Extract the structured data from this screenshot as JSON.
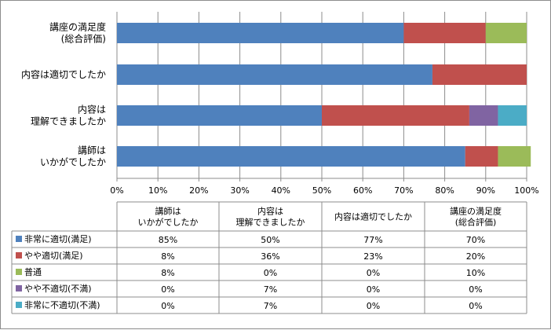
{
  "chart_data": {
    "type": "bar",
    "orientation": "horizontal",
    "stacked": "percent",
    "categories": [
      [
        "講座の満足度",
        "(総合評価)"
      ],
      [
        "内容は適切でしたか"
      ],
      [
        "内容は",
        "理解できましたか"
      ],
      [
        "講師は",
        "いかがでしたか"
      ]
    ],
    "x_ticks": [
      "0%",
      "10%",
      "20%",
      "30%",
      "40%",
      "50%",
      "60%",
      "70%",
      "80%",
      "90%",
      "100%"
    ],
    "xlim": [
      0,
      100
    ],
    "grid": true,
    "series": [
      {
        "name": "非常に適切(満足)",
        "color": "#4f81bd",
        "values": [
          70,
          77,
          50,
          85
        ]
      },
      {
        "name": "やや適切(満足)",
        "color": "#c0504d",
        "values": [
          20,
          23,
          36,
          8
        ]
      },
      {
        "name": "普通",
        "color": "#9bbb59",
        "values": [
          10,
          0,
          0,
          8
        ]
      },
      {
        "name": "やや不適切(不満)",
        "color": "#8064a2",
        "values": [
          0,
          0,
          7,
          0
        ]
      },
      {
        "name": "非常に不適切(不満)",
        "color": "#4bacc6",
        "values": [
          0,
          0,
          7,
          0
        ]
      }
    ],
    "table": {
      "columns": [
        [
          "講師は",
          "いかがでしたか"
        ],
        [
          "内容は",
          "理解できましたか"
        ],
        [
          "内容は適切でしたか"
        ],
        [
          "講座の満足度",
          "(総合評価)"
        ]
      ],
      "rows": [
        [
          "85%",
          "50%",
          "77%",
          "70%"
        ],
        [
          "8%",
          "36%",
          "23%",
          "20%"
        ],
        [
          "8%",
          "0%",
          "0%",
          "10%"
        ],
        [
          "0%",
          "7%",
          "0%",
          "0%"
        ],
        [
          "0%",
          "7%",
          "0%",
          "0%"
        ]
      ]
    }
  }
}
